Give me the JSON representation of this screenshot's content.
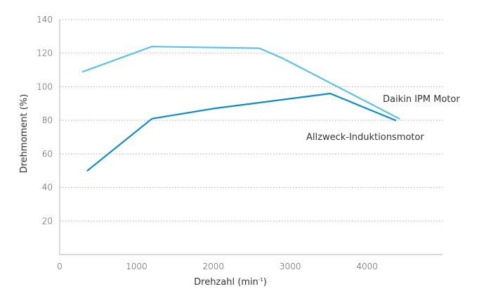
{
  "chart_data": {
    "type": "line",
    "title": "",
    "xlabel_prefix": "Drehzahl (min",
    "xlabel_superscript": "-1",
    "xlabel_suffix": ")",
    "ylabel": "Drehmoment (%)",
    "xlim": [
      0,
      5000
    ],
    "ylim": [
      0,
      140
    ],
    "x_ticks": [
      0,
      1000,
      2000,
      3000,
      4000
    ],
    "x_tick_labels": [
      "0",
      "1000",
      "2000",
      "3000",
      "4000"
    ],
    "y_ticks": [
      20,
      40,
      60,
      80,
      100,
      120,
      140
    ],
    "y_tick_labels": [
      "20",
      "40",
      "60",
      "80",
      "100",
      "120",
      "140"
    ],
    "grid": "horizontal-dotted",
    "series": [
      {
        "name": "Daikin IPM Motor",
        "color": "#5bc2e7",
        "points": [
          [
            300,
            109
          ],
          [
            1200,
            124
          ],
          [
            2600,
            123
          ],
          [
            2900,
            117
          ],
          [
            4420,
            81
          ]
        ]
      },
      {
        "name": "Allzweck-Induktionsmotor",
        "color": "#0b8cc6",
        "points": [
          [
            360,
            50
          ],
          [
            1200,
            81
          ],
          [
            2000,
            87
          ],
          [
            3520,
            96
          ],
          [
            4370,
            80
          ]
        ]
      }
    ]
  }
}
